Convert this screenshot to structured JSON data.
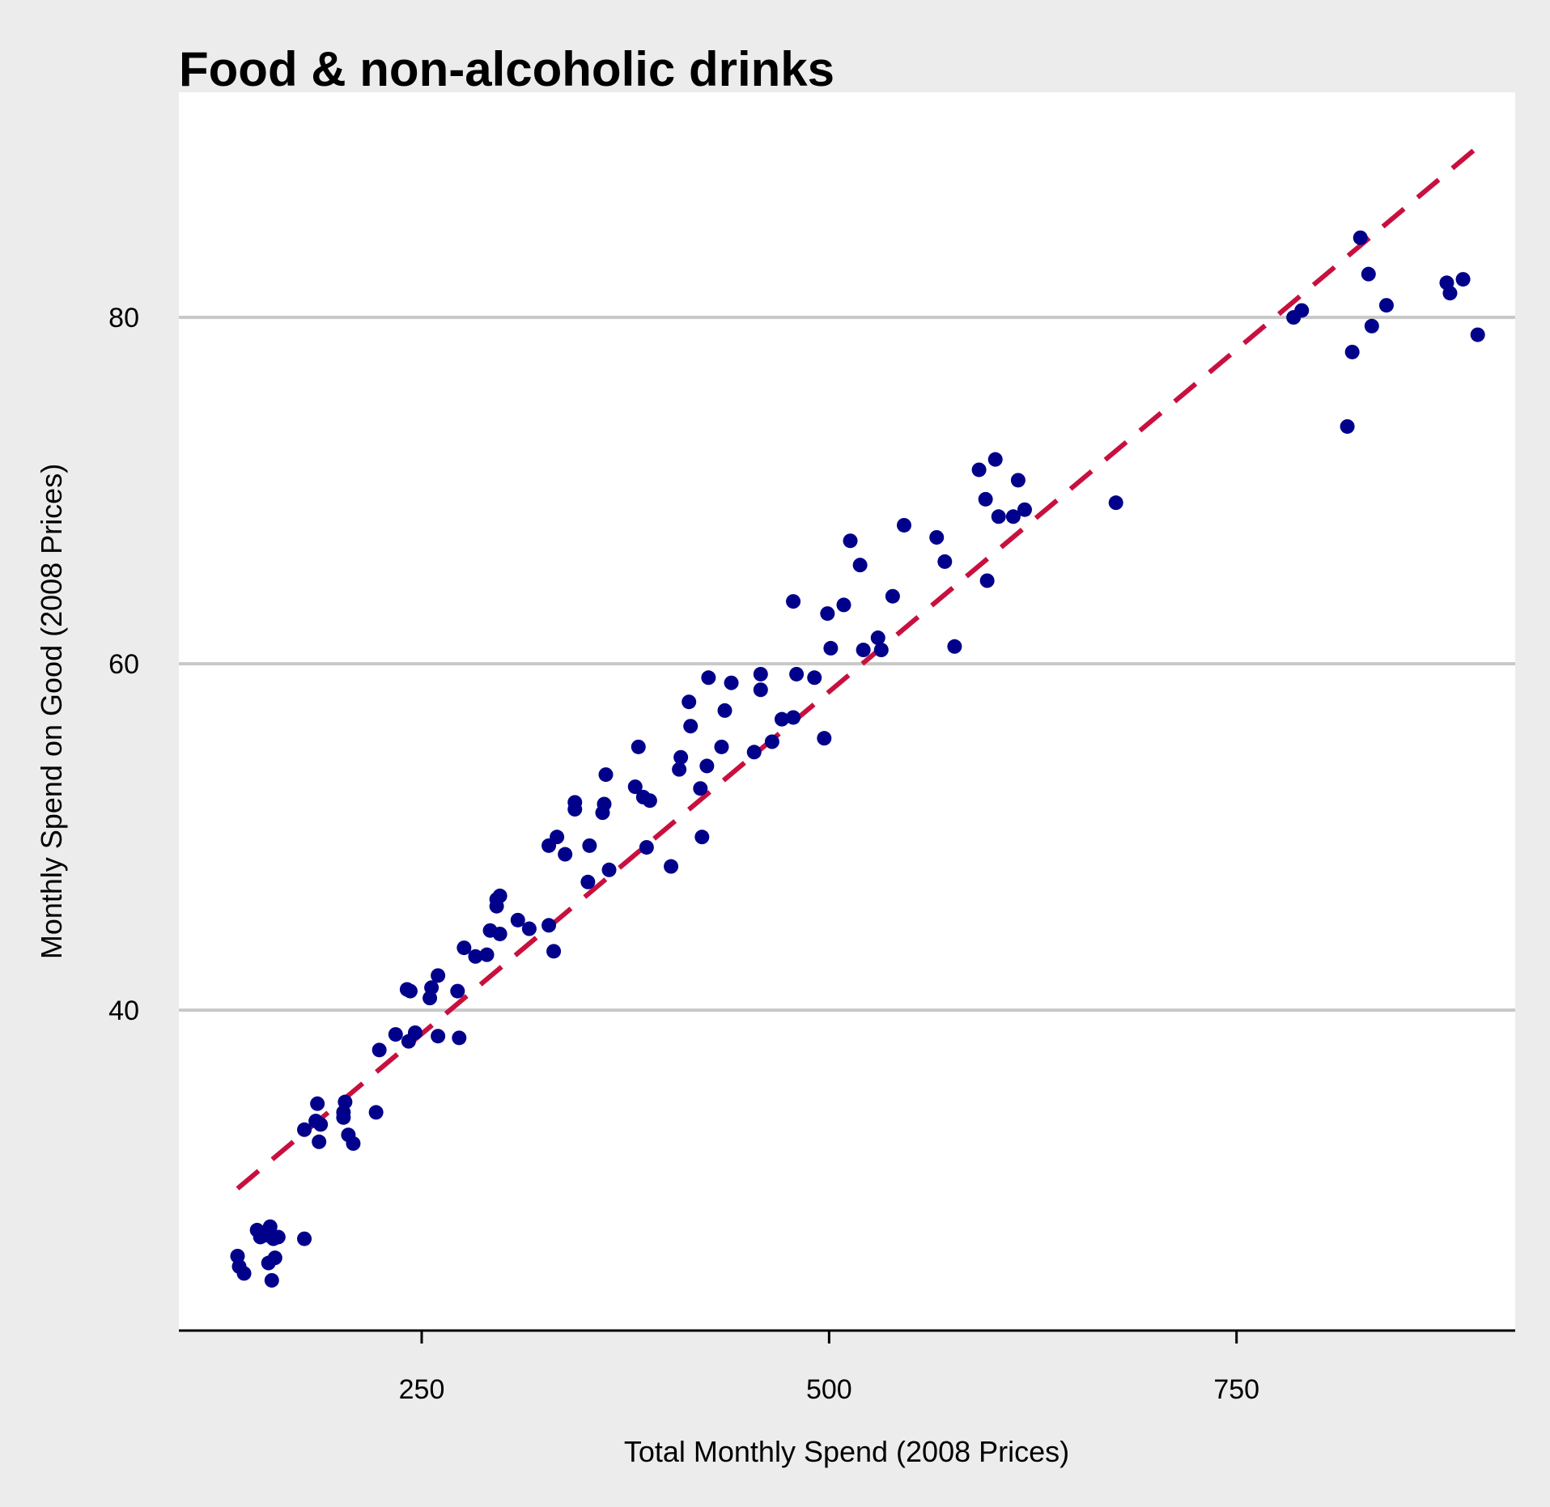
{
  "chart_data": {
    "type": "scatter",
    "title": "Food & non-alcoholic drinks",
    "xlabel": "Total Monthly Spend (2008 Prices)",
    "ylabel": "Monthly Spend on Good (2008 Prices)",
    "xlim": [
      101,
      921
    ],
    "ylim": [
      21.5,
      93
    ],
    "x_ticks": [
      250,
      500,
      750
    ],
    "y_ticks": [
      40,
      60,
      80
    ],
    "grid": "horizontal",
    "colors": {
      "points": "#00008b",
      "trend": "#c8103e",
      "grid": "#c8c8c8",
      "panel": "#ffffff",
      "background": "#ececec"
    },
    "trend_line": {
      "style": "dashed",
      "x": [
        137,
        900
      ],
      "y": [
        29.7,
        90.0
      ]
    },
    "points": [
      {
        "x": 137,
        "y": 25.8
      },
      {
        "x": 138,
        "y": 25.2
      },
      {
        "x": 141,
        "y": 24.8
      },
      {
        "x": 149,
        "y": 27.3
      },
      {
        "x": 151,
        "y": 26.9
      },
      {
        "x": 154,
        "y": 27.0
      },
      {
        "x": 156,
        "y": 25.4
      },
      {
        "x": 157,
        "y": 27.5
      },
      {
        "x": 159,
        "y": 26.8
      },
      {
        "x": 158,
        "y": 24.4
      },
      {
        "x": 160,
        "y": 25.7
      },
      {
        "x": 162,
        "y": 26.9
      },
      {
        "x": 178,
        "y": 26.8
      },
      {
        "x": 178,
        "y": 33.1
      },
      {
        "x": 185,
        "y": 33.6
      },
      {
        "x": 186,
        "y": 34.6
      },
      {
        "x": 187,
        "y": 32.4
      },
      {
        "x": 188,
        "y": 33.4
      },
      {
        "x": 202,
        "y": 33.8
      },
      {
        "x": 202,
        "y": 34.1
      },
      {
        "x": 203,
        "y": 34.7
      },
      {
        "x": 205,
        "y": 32.8
      },
      {
        "x": 208,
        "y": 32.3
      },
      {
        "x": 222,
        "y": 34.1
      },
      {
        "x": 224,
        "y": 37.7
      },
      {
        "x": 234,
        "y": 38.6
      },
      {
        "x": 241,
        "y": 41.2
      },
      {
        "x": 243,
        "y": 41.1
      },
      {
        "x": 242,
        "y": 38.2
      },
      {
        "x": 246,
        "y": 38.7
      },
      {
        "x": 255,
        "y": 40.7
      },
      {
        "x": 256,
        "y": 41.3
      },
      {
        "x": 260,
        "y": 42.0
      },
      {
        "x": 260,
        "y": 38.5
      },
      {
        "x": 272,
        "y": 41.1
      },
      {
        "x": 273,
        "y": 38.4
      },
      {
        "x": 276,
        "y": 43.6
      },
      {
        "x": 283,
        "y": 43.1
      },
      {
        "x": 290,
        "y": 43.2
      },
      {
        "x": 292,
        "y": 44.6
      },
      {
        "x": 296,
        "y": 46.0
      },
      {
        "x": 296,
        "y": 46.4
      },
      {
        "x": 298,
        "y": 46.6
      },
      {
        "x": 298,
        "y": 44.4
      },
      {
        "x": 309,
        "y": 45.2
      },
      {
        "x": 316,
        "y": 44.7
      },
      {
        "x": 328,
        "y": 44.9
      },
      {
        "x": 328,
        "y": 49.5
      },
      {
        "x": 331,
        "y": 43.4
      },
      {
        "x": 333,
        "y": 50.0
      },
      {
        "x": 338,
        "y": 49.0
      },
      {
        "x": 344,
        "y": 51.6
      },
      {
        "x": 344,
        "y": 52.0
      },
      {
        "x": 352,
        "y": 47.4
      },
      {
        "x": 353,
        "y": 49.5
      },
      {
        "x": 361,
        "y": 51.4
      },
      {
        "x": 362,
        "y": 51.9
      },
      {
        "x": 363,
        "y": 53.6
      },
      {
        "x": 365,
        "y": 48.1
      },
      {
        "x": 381,
        "y": 52.9
      },
      {
        "x": 383,
        "y": 55.2
      },
      {
        "x": 386,
        "y": 52.3
      },
      {
        "x": 388,
        "y": 49.4
      },
      {
        "x": 390,
        "y": 52.1
      },
      {
        "x": 403,
        "y": 48.3
      },
      {
        "x": 408,
        "y": 53.9
      },
      {
        "x": 409,
        "y": 54.6
      },
      {
        "x": 414,
        "y": 57.8
      },
      {
        "x": 415,
        "y": 56.4
      },
      {
        "x": 421,
        "y": 52.8
      },
      {
        "x": 422,
        "y": 50.0
      },
      {
        "x": 425,
        "y": 54.1
      },
      {
        "x": 426,
        "y": 59.2
      },
      {
        "x": 434,
        "y": 55.2
      },
      {
        "x": 436,
        "y": 57.3
      },
      {
        "x": 440,
        "y": 58.9
      },
      {
        "x": 454,
        "y": 54.9
      },
      {
        "x": 458,
        "y": 59.4
      },
      {
        "x": 458,
        "y": 58.5
      },
      {
        "x": 465,
        "y": 55.5
      },
      {
        "x": 471,
        "y": 56.8
      },
      {
        "x": 478,
        "y": 56.9
      },
      {
        "x": 478,
        "y": 63.6
      },
      {
        "x": 480,
        "y": 59.4
      },
      {
        "x": 491,
        "y": 59.2
      },
      {
        "x": 497,
        "y": 55.7
      },
      {
        "x": 499,
        "y": 62.9
      },
      {
        "x": 501,
        "y": 60.9
      },
      {
        "x": 509,
        "y": 63.4
      },
      {
        "x": 513,
        "y": 67.1
      },
      {
        "x": 519,
        "y": 65.7
      },
      {
        "x": 521,
        "y": 60.8
      },
      {
        "x": 530,
        "y": 61.5
      },
      {
        "x": 532,
        "y": 60.8
      },
      {
        "x": 539,
        "y": 63.9
      },
      {
        "x": 546,
        "y": 68.0
      },
      {
        "x": 566,
        "y": 67.3
      },
      {
        "x": 571,
        "y": 65.9
      },
      {
        "x": 577,
        "y": 61.0
      },
      {
        "x": 592,
        "y": 71.2
      },
      {
        "x": 596,
        "y": 69.5
      },
      {
        "x": 597,
        "y": 64.8
      },
      {
        "x": 602,
        "y": 71.8
      },
      {
        "x": 604,
        "y": 68.5
      },
      {
        "x": 613,
        "y": 68.5
      },
      {
        "x": 616,
        "y": 70.6
      },
      {
        "x": 620,
        "y": 68.9
      },
      {
        "x": 676,
        "y": 69.3
      },
      {
        "x": 785,
        "y": 80.0
      },
      {
        "x": 790,
        "y": 80.4
      },
      {
        "x": 818,
        "y": 73.7
      },
      {
        "x": 821,
        "y": 78.0
      },
      {
        "x": 826,
        "y": 84.6
      },
      {
        "x": 831,
        "y": 82.5
      },
      {
        "x": 833,
        "y": 79.5
      },
      {
        "x": 842,
        "y": 80.7
      },
      {
        "x": 879,
        "y": 82.0
      },
      {
        "x": 881,
        "y": 81.4
      },
      {
        "x": 889,
        "y": 82.2
      },
      {
        "x": 898,
        "y": 79.0
      }
    ]
  }
}
